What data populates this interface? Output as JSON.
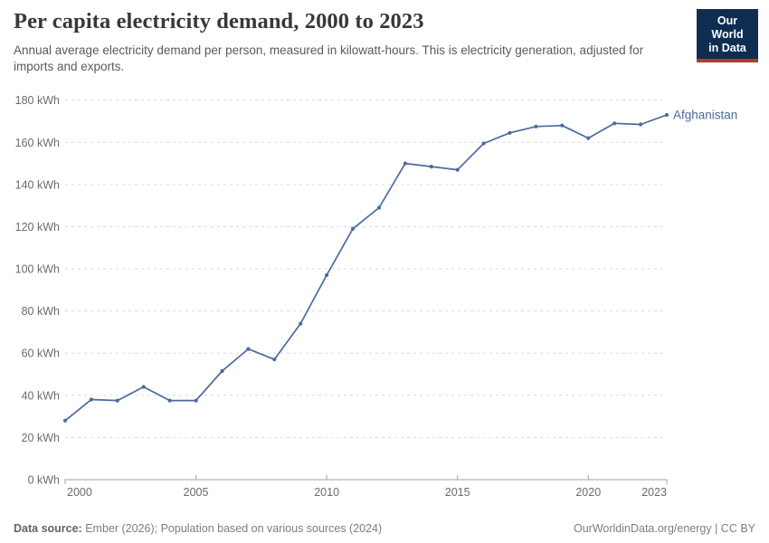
{
  "header": {
    "title": "Per capita electricity demand, 2000 to 2023",
    "subtitle": "Annual average electricity demand per person, measured in kilowatt-hours. This is electricity generation, adjusted for imports and exports.",
    "logo": {
      "line1": "Our World",
      "line2": "in Data"
    }
  },
  "chart_data": {
    "type": "line",
    "title": "Per capita electricity demand, 2000 to 2023",
    "xlabel": "",
    "ylabel": "",
    "ylim": [
      0,
      180
    ],
    "ytick_step": 20,
    "ytick_suffix": " kWh",
    "xticks": [
      2000,
      2005,
      2010,
      2015,
      2020,
      2023
    ],
    "grid": "horizontal-dashed",
    "legend_position": "end-of-line-label",
    "series": [
      {
        "name": "Afghanistan",
        "color": "#4C6A9C",
        "x": [
          2000,
          2001,
          2002,
          2003,
          2004,
          2005,
          2006,
          2007,
          2008,
          2009,
          2010,
          2011,
          2012,
          2013,
          2014,
          2015,
          2016,
          2017,
          2018,
          2019,
          2020,
          2021,
          2022,
          2023
        ],
        "values": [
          28,
          38,
          37.5,
          44,
          37.5,
          37.5,
          51.5,
          62,
          57,
          74,
          97,
          119,
          129,
          150,
          148.5,
          147,
          159.5,
          164.5,
          167.5,
          168,
          162,
          169,
          168.5,
          173
        ]
      }
    ]
  },
  "footer": {
    "source_label": "Data source:",
    "source_text": " Ember (2026); Population based on various sources (2024)",
    "credit": "OurWorldinData.org/energy | CC BY"
  },
  "colors": {
    "accent_line": "#4C6A9C",
    "grid": "#dadada",
    "axis": "#a3a3a3",
    "tick_text": "#6b6b6b",
    "logo_bg": "#0E2D51",
    "logo_accent": "#B6392C"
  }
}
